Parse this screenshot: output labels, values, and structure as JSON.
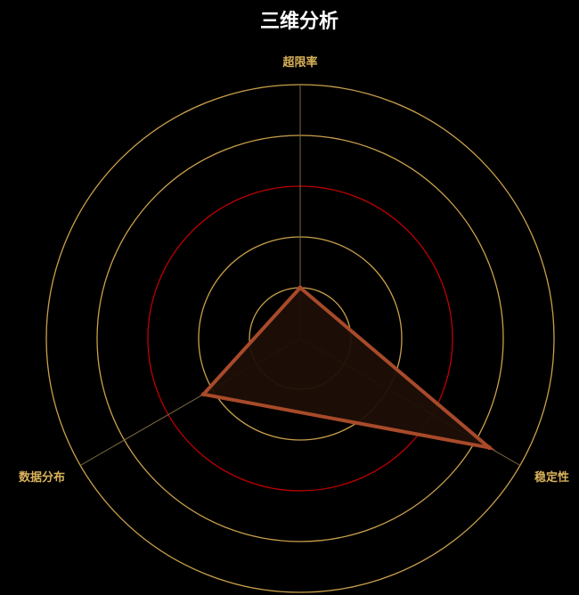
{
  "chart_data": {
    "type": "radar",
    "title": "三维分析",
    "indicators": [
      "超限率",
      "稳定性",
      "数据分布"
    ],
    "max": 5,
    "rings": [
      1,
      2,
      3,
      4,
      5
    ],
    "highlight_ring": 3,
    "series": [
      {
        "values": [
          1,
          4.3,
          2.2
        ]
      }
    ],
    "colors": {
      "background": "#000000",
      "title": "#ffffff",
      "ring": "#c9a04a",
      "highlight_ring": "#c00000",
      "axis_line": "#7a6a40",
      "label": "#d9b25a",
      "series_line": "#a84a2a",
      "series_fill": "#1e0f06"
    }
  }
}
